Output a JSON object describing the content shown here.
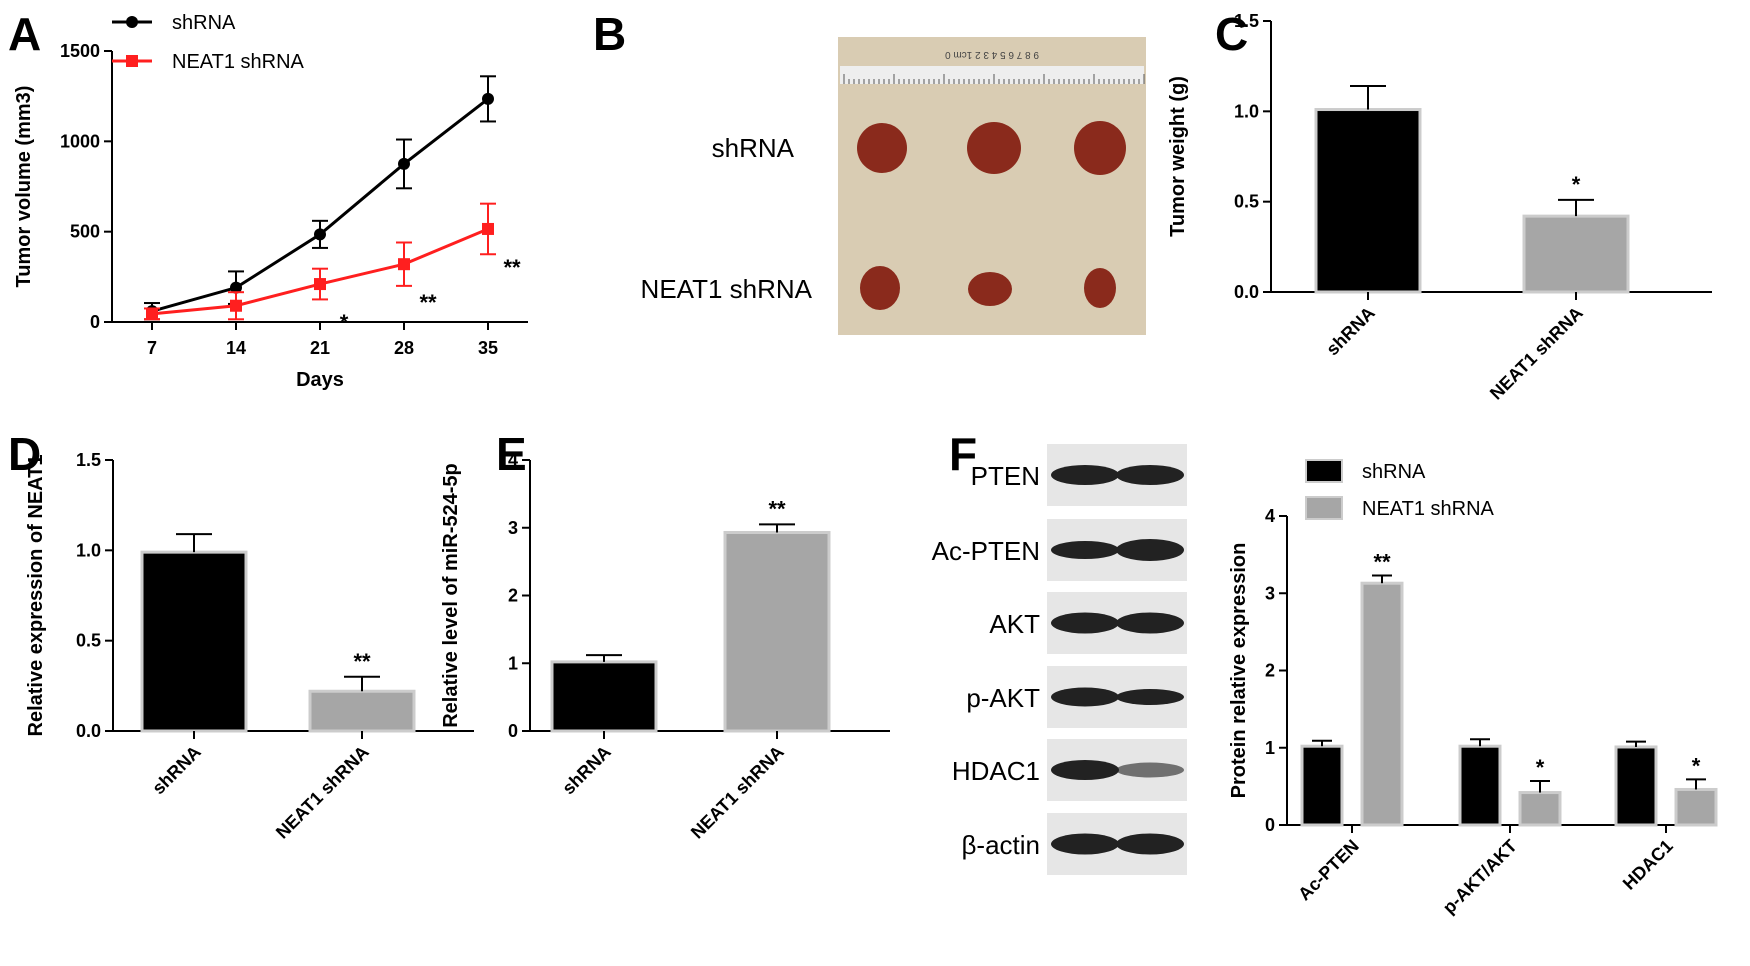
{
  "colors": {
    "black": "#000000",
    "red": "#ff1f1f",
    "gray": "#a6a6a6",
    "bar_border": "#cccccc",
    "photo_bg": "#d9ccb3",
    "tumor": "#8a2a1c",
    "blot_band": "#222222",
    "blot_bg": "#e6e6e6"
  },
  "panel_letters": [
    "A",
    "B",
    "C",
    "D",
    "E",
    "F"
  ],
  "photo": {
    "row_labels": [
      "shRNA",
      "NEAT1 shRNA"
    ],
    "ruler_text": "9 8 7 6 5 4 3 2 1cm 0"
  },
  "blot": {
    "labels": [
      "PTEN",
      "Ac-PTEN",
      "AKT",
      "p-AKT",
      "HDAC1",
      "β-actin"
    ]
  },
  "chart_data": [
    {
      "panel": "A",
      "type": "line",
      "xlabel": "Days",
      "ylabel": "Tumor volume (mm3)",
      "x": [
        7,
        14,
        21,
        28,
        35
      ],
      "xlim": [
        7,
        35
      ],
      "ylim": [
        0,
        1500
      ],
      "yticks": [
        0,
        500,
        1000,
        1500
      ],
      "legend_position": "top-left",
      "series": [
        {
          "name": "shRNA",
          "values": [
            60,
            190,
            485,
            875,
            1235
          ],
          "errors": [
            45,
            90,
            75,
            135,
            125
          ],
          "annotations": [
            "",
            "",
            "",
            "",
            ""
          ]
        },
        {
          "name": "NEAT1 shRNA",
          "values": [
            45,
            90,
            210,
            320,
            515
          ],
          "errors": [
            30,
            75,
            85,
            120,
            140
          ],
          "annotations": [
            "",
            "",
            "*",
            "**",
            "**"
          ]
        }
      ]
    },
    {
      "panel": "C",
      "type": "bar",
      "categories": [
        "shRNA",
        "NEAT1 shRNA"
      ],
      "values": [
        1.01,
        0.42
      ],
      "errors": [
        0.13,
        0.09
      ],
      "annotations": [
        "",
        "*"
      ],
      "ylabel": "Tumor weight (g)",
      "ylim": [
        0,
        1.5
      ],
      "yticks": [
        "0.0",
        "0.5",
        "1.0",
        "1.5"
      ]
    },
    {
      "panel": "D",
      "type": "bar",
      "categories": [
        "shRNA",
        "NEAT1 shRNA"
      ],
      "values": [
        0.99,
        0.22
      ],
      "errors": [
        0.1,
        0.08
      ],
      "annotations": [
        "",
        "**"
      ],
      "ylabel": "Relative expression of NEAT1",
      "ylim": [
        0,
        1.5
      ],
      "yticks": [
        "0.0",
        "0.5",
        "1.0",
        "1.5"
      ]
    },
    {
      "panel": "E",
      "type": "bar",
      "categories": [
        "shRNA",
        "NEAT1 shRNA"
      ],
      "values": [
        1.02,
        2.93
      ],
      "errors": [
        0.1,
        0.12
      ],
      "annotations": [
        "",
        "**"
      ],
      "ylabel": "Relative level of miR-524-5p",
      "ylim": [
        0,
        4
      ],
      "yticks": [
        "0",
        "1",
        "2",
        "3",
        "4"
      ]
    },
    {
      "panel": "F",
      "type": "bar",
      "categories": [
        "Ac-PTEN",
        "p-AKT/AKT",
        "HDAC1"
      ],
      "ylabel": "Protein relative expression",
      "ylim": [
        0,
        4
      ],
      "yticks": [
        "0",
        "1",
        "2",
        "3",
        "4"
      ],
      "legend_position": "top-left",
      "series": [
        {
          "name": "shRNA",
          "values": [
            1.02,
            1.02,
            1.01
          ],
          "errors": [
            0.07,
            0.09,
            0.07
          ],
          "annotations": [
            "",
            "",
            ""
          ]
        },
        {
          "name": "NEAT1 shRNA",
          "values": [
            3.13,
            0.42,
            0.46
          ],
          "errors": [
            0.1,
            0.15,
            0.13
          ],
          "annotations": [
            "**",
            "*",
            "*"
          ]
        }
      ]
    }
  ]
}
